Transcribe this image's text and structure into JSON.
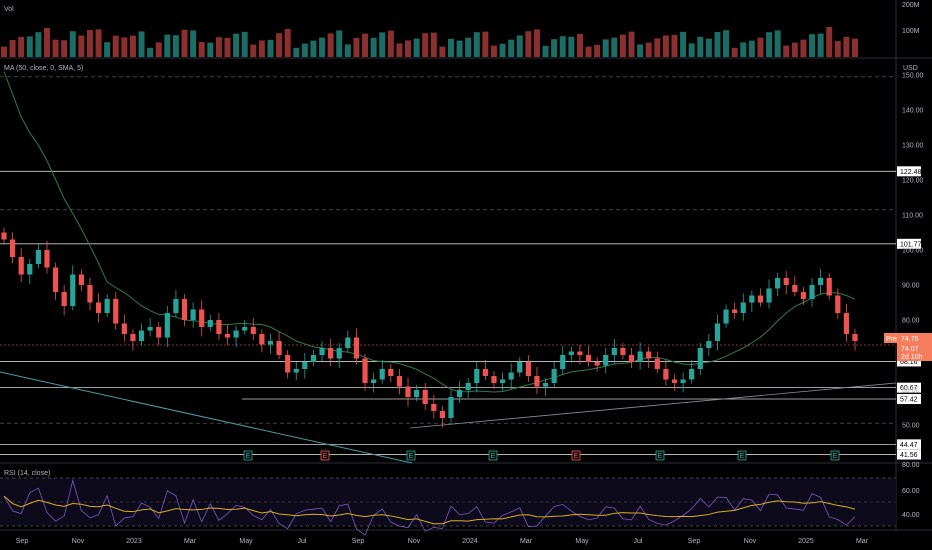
{
  "panes": {
    "volume_label": "Vol",
    "price_label": "MA (50, close, 0, SMA, 5)",
    "rsi_label": "RSI (14, close)",
    "currency": "USD"
  },
  "colors": {
    "up": "#26a69a",
    "down": "#ef5350",
    "vol_up": "#1b6e66",
    "vol_down": "#8c2f2f",
    "ma": "#2e7d4a",
    "rsi": "#7e57c2",
    "rsi_ma": "#d4b020",
    "trend": "#4a9aa8",
    "price_tag": "#f57c5c"
  },
  "chart_data": {
    "type": "candlestick",
    "x_ticks": [
      "Sep",
      "Nov",
      "2023",
      "Mar",
      "May",
      "Jul",
      "Sep",
      "Nov",
      "2024",
      "Mar",
      "May",
      "Jul",
      "Sep",
      "Nov",
      "2025",
      "Mar"
    ],
    "y_ticks": [
      150,
      140,
      130,
      120,
      110,
      100,
      90,
      80,
      70,
      60,
      50
    ],
    "y_tick_labels": [
      "150.00",
      "140.00",
      "130.00",
      "120.00",
      "110.00",
      "100.00",
      "90.00",
      "80.00",
      "70.00",
      "60.00",
      "50.00"
    ],
    "ylim": [
      40,
      152
    ],
    "volume_ticks": [
      "200M",
      "100M"
    ],
    "rsi_ticks": [
      "80.00",
      "60.00",
      "40.00"
    ],
    "horizontal_levels": [
      {
        "value": 122.48,
        "label": "122.48"
      },
      {
        "value": 101.77,
        "label": "101.77"
      },
      {
        "value": 68.16,
        "label": "68.16"
      },
      {
        "value": 60.67,
        "label": "60.67"
      },
      {
        "value": 57.42,
        "label": "57.42"
      },
      {
        "value": 44.47,
        "label": "44.47"
      },
      {
        "value": 41.56,
        "label": "41.56"
      }
    ],
    "dashed_levels": [
      149.5,
      111.5,
      50.5
    ],
    "price_tags": {
      "pre_label": "Pre",
      "pre": "74.76",
      "last": "74.07",
      "countdown": "2d 10h"
    },
    "earnings_markers": [
      "E",
      "E",
      "E",
      "E",
      "E",
      "E",
      "E",
      "E"
    ],
    "closes": [
      103,
      98,
      93,
      96,
      100,
      95,
      88,
      84,
      93,
      90,
      85,
      82,
      86,
      79,
      76,
      74,
      77,
      78,
      75,
      82,
      86,
      80,
      83,
      78,
      80,
      76,
      75,
      77,
      78,
      76,
      73,
      74,
      70,
      65,
      66,
      68,
      70,
      72,
      69,
      72,
      75,
      69,
      62,
      63,
      66,
      64,
      61,
      58,
      60,
      56,
      54,
      52,
      58,
      60,
      62,
      66,
      64,
      62,
      63,
      65,
      68,
      64,
      61,
      62,
      66,
      70,
      71,
      70,
      68,
      67,
      70,
      72,
      70,
      68,
      71,
      69,
      66,
      63,
      62,
      63,
      66,
      72,
      74,
      79,
      83,
      82,
      85,
      87,
      85,
      89,
      92,
      90,
      88,
      86,
      90,
      92,
      87,
      82,
      76,
      74
    ]
  }
}
